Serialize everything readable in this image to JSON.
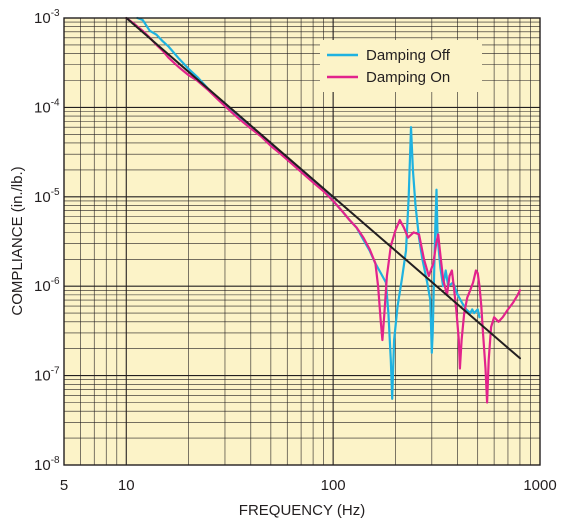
{
  "chart_data": {
    "type": "line",
    "title": "",
    "xlabel": "FREQUENCY (Hz)",
    "ylabel": "COMPLIANCE (in./lb.)",
    "x_scale": "log",
    "y_scale": "log",
    "xlim": [
      5,
      1000
    ],
    "ylim": [
      1e-08,
      0.001
    ],
    "x_tick_labels": [
      {
        "value": 5,
        "label": "5"
      },
      {
        "value": 10,
        "label": "10"
      },
      {
        "value": 100,
        "label": "100"
      },
      {
        "value": 1000,
        "label": "1000"
      }
    ],
    "y_tick_labels": [
      {
        "value": 0.001,
        "base": "10",
        "exp": "-3"
      },
      {
        "value": 0.0001,
        "base": "10",
        "exp": "-4"
      },
      {
        "value": 1e-05,
        "base": "10",
        "exp": "-5"
      },
      {
        "value": 1e-06,
        "base": "10",
        "exp": "-6"
      },
      {
        "value": 1e-07,
        "base": "10",
        "exp": "-7"
      },
      {
        "value": 1e-08,
        "base": "10",
        "exp": "-8"
      }
    ],
    "grid": true,
    "legend_position": "top-right",
    "background_color": "#fcf3c8",
    "series": [
      {
        "name": "Damping Off",
        "color": "#1fb2e0",
        "points": [
          [
            11.3,
            0.001
          ],
          [
            12.0,
            0.00095
          ],
          [
            13.0,
            0.00072
          ],
          [
            14.0,
            0.00065
          ],
          [
            15.0,
            0.00055
          ],
          [
            16.0,
            0.00048
          ],
          [
            18.0,
            0.00035
          ],
          [
            20.0,
            0.00027
          ],
          [
            22.0,
            0.00022
          ],
          [
            25.0,
            0.00016
          ],
          [
            28.0,
            0.000125
          ],
          [
            32.0,
            9.5e-05
          ],
          [
            35.0,
            8e-05
          ],
          [
            40.0,
            6e-05
          ],
          [
            45.0,
            4.8e-05
          ],
          [
            50.0,
            3.8e-05
          ],
          [
            55.0,
            3.2e-05
          ],
          [
            60.0,
            2.7e-05
          ],
          [
            70.0,
            2e-05
          ],
          [
            80.0,
            1.5e-05
          ],
          [
            90.0,
            1.2e-05
          ],
          [
            100.0,
            9e-06
          ],
          [
            110.0,
            7e-06
          ],
          [
            120.0,
            5.5e-06
          ],
          [
            130.0,
            4.5e-06
          ],
          [
            140.0,
            3.3e-06
          ],
          [
            150.0,
            2.5e-06
          ],
          [
            160.0,
            1.8e-06
          ],
          [
            170.0,
            1.4e-06
          ],
          [
            180.0,
            1.1e-06
          ],
          [
            185.0,
            5e-07
          ],
          [
            190.0,
            1.5e-07
          ],
          [
            193.0,
            5.5e-08
          ],
          [
            197.0,
            2.5e-07
          ],
          [
            205.0,
            6e-07
          ],
          [
            215.0,
            1.2e-06
          ],
          [
            225.0,
            2.5e-06
          ],
          [
            232.0,
            1e-05
          ],
          [
            238.0,
            6e-05
          ],
          [
            243.0,
            2e-05
          ],
          [
            250.0,
            8e-06
          ],
          [
            260.0,
            3.5e-06
          ],
          [
            270.0,
            2e-06
          ],
          [
            285.0,
            1.1e-06
          ],
          [
            295.0,
            7e-07
          ],
          [
            300.0,
            1.8e-07
          ],
          [
            303.0,
            3e-07
          ],
          [
            308.0,
            1.5e-06
          ],
          [
            312.0,
            5e-06
          ],
          [
            316.0,
            1.2e-05
          ],
          [
            320.0,
            3.5e-06
          ],
          [
            330.0,
            1.6e-06
          ],
          [
            340.0,
            1e-06
          ],
          [
            350.0,
            1.5e-06
          ],
          [
            360.0,
            1e-06
          ],
          [
            380.0,
            1.1e-06
          ],
          [
            400.0,
            8e-07
          ],
          [
            420.0,
            6.5e-07
          ],
          [
            440.0,
            5.5e-07
          ],
          [
            460.0,
            5e-07
          ],
          [
            470.0,
            5.5e-07
          ],
          [
            480.0,
            5e-07
          ],
          [
            500.0,
            5.5e-07
          ],
          [
            510.0,
            4.5e-07
          ]
        ]
      },
      {
        "name": "Damping On",
        "color": "#e2238c",
        "points": [
          [
            10.0,
            0.001
          ],
          [
            11.0,
            0.00085
          ],
          [
            12.0,
            0.00072
          ],
          [
            13.0,
            0.0006
          ],
          [
            14.0,
            0.0005
          ],
          [
            15.0,
            0.00043
          ],
          [
            16.0,
            0.00036
          ],
          [
            18.0,
            0.00028
          ],
          [
            20.0,
            0.00023
          ],
          [
            22.0,
            0.0002
          ],
          [
            25.0,
            0.000155
          ],
          [
            28.0,
            0.00012
          ],
          [
            32.0,
            9e-05
          ],
          [
            35.0,
            7.5e-05
          ],
          [
            40.0,
            5.8e-05
          ],
          [
            45.0,
            4.7e-05
          ],
          [
            50.0,
            3.7e-05
          ],
          [
            55.0,
            3.1e-05
          ],
          [
            60.0,
            2.6e-05
          ],
          [
            70.0,
            1.9e-05
          ],
          [
            80.0,
            1.45e-05
          ],
          [
            90.0,
            1.15e-05
          ],
          [
            100.0,
            9e-06
          ],
          [
            110.0,
            7e-06
          ],
          [
            120.0,
            5.5e-06
          ],
          [
            130.0,
            4.5e-06
          ],
          [
            140.0,
            3.5e-06
          ],
          [
            150.0,
            2.6e-06
          ],
          [
            160.0,
            1.8e-06
          ],
          [
            165.0,
            1e-06
          ],
          [
            170.0,
            4e-07
          ],
          [
            173.0,
            2.5e-07
          ],
          [
            177.0,
            5e-07
          ],
          [
            182.0,
            1.3e-06
          ],
          [
            190.0,
            2.8e-06
          ],
          [
            200.0,
            4.2e-06
          ],
          [
            210.0,
            5.5e-06
          ],
          [
            220.0,
            4.5e-06
          ],
          [
            230.0,
            3.5e-06
          ],
          [
            245.0,
            4e-06
          ],
          [
            260.0,
            3.8e-06
          ],
          [
            275.0,
            2e-06
          ],
          [
            290.0,
            1.3e-06
          ],
          [
            305.0,
            1.8e-06
          ],
          [
            315.0,
            3e-06
          ],
          [
            322.0,
            3.8e-06
          ],
          [
            328.0,
            2.5e-06
          ],
          [
            340.0,
            1.2e-06
          ],
          [
            355.0,
            8e-07
          ],
          [
            365.0,
            1.3e-06
          ],
          [
            375.0,
            1.5e-06
          ],
          [
            385.0,
            9e-07
          ],
          [
            395.0,
            5e-07
          ],
          [
            405.0,
            2.5e-07
          ],
          [
            410.0,
            1.2e-07
          ],
          [
            418.0,
            2.5e-07
          ],
          [
            430.0,
            5e-07
          ],
          [
            445.0,
            7.5e-07
          ],
          [
            460.0,
            9e-07
          ],
          [
            475.0,
            1.1e-06
          ],
          [
            490.0,
            1.5e-06
          ],
          [
            500.0,
            1.4e-06
          ],
          [
            510.0,
            1e-06
          ],
          [
            520.0,
            6e-07
          ],
          [
            530.0,
            3e-07
          ],
          [
            545.0,
            1.2e-07
          ],
          [
            555.0,
            5e-08
          ],
          [
            565.0,
            1.5e-07
          ],
          [
            580.0,
            3.5e-07
          ],
          [
            600.0,
            4.5e-07
          ],
          [
            630.0,
            4e-07
          ],
          [
            660.0,
            4.5e-07
          ],
          [
            700.0,
            5.5e-07
          ],
          [
            740.0,
            6.5e-07
          ],
          [
            780.0,
            8e-07
          ],
          [
            800.0,
            9e-07
          ]
        ]
      },
      {
        "color": "#231f20",
        "points": [
          [
            10.0,
            0.001
          ],
          [
            800.0,
            1.56e-07
          ]
        ]
      }
    ]
  }
}
